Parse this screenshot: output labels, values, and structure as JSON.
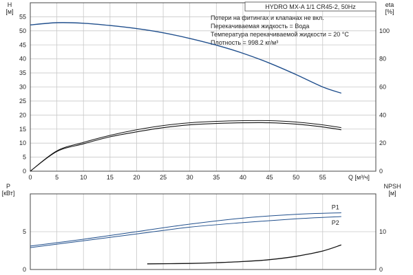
{
  "chart_data": [
    {
      "type": "line",
      "title": "HYDRO MX-A 1/1 CR45-2, 50Hz",
      "notes": [
        "Потери на фитингах и клапанах не вкл.",
        "Перекачиваемая жидкость = Вода",
        "Температура перекачиваемой жидкости = 20 °C",
        "Плотность = 998.2 кг/м³"
      ],
      "xlabel": "Q [м³/ч]",
      "xlim": [
        0,
        65
      ],
      "xticks": [
        "0",
        "5",
        "10",
        "15",
        "20",
        "25",
        "30",
        "35",
        "40",
        "45",
        "50",
        "55"
      ],
      "ylabel_left": "H\n[м]",
      "ylim_left": [
        0,
        60
      ],
      "yticks_left": [
        "0",
        "5",
        "10",
        "15",
        "20",
        "25",
        "30",
        "35",
        "40",
        "45",
        "50",
        "55"
      ],
      "ylabel_right": "eta\n[%]",
      "ylim_right": [
        0,
        120
      ],
      "yticks_right": [
        "0",
        "20",
        "40",
        "60",
        "80",
        "100"
      ],
      "grid": true,
      "colors": {
        "head": "#1f4e8c",
        "eta": "#111111"
      },
      "series": [
        {
          "axis": "left",
          "color_key": "head",
          "x": [
            0,
            5,
            10,
            15,
            20,
            25,
            30,
            35,
            40,
            45,
            50,
            55,
            58.5
          ],
          "values": [
            52.1,
            52.9,
            52.7,
            51.9,
            50.8,
            49.3,
            47.3,
            44.9,
            42.0,
            38.5,
            34.4,
            30.0,
            27.8
          ]
        },
        {
          "axis": "right",
          "color_key": "eta",
          "x": [
            0,
            5,
            10,
            15,
            20,
            25,
            30,
            35,
            40,
            45,
            50,
            55,
            58.5
          ],
          "values": [
            0,
            14.5,
            20.5,
            25.5,
            29.5,
            32.5,
            34.5,
            35.5,
            36.0,
            36.0,
            35.0,
            33.0,
            31.0
          ]
        },
        {
          "axis": "right",
          "color_key": "eta",
          "x": [
            0,
            5,
            10,
            15,
            20,
            25,
            30,
            35,
            40,
            45,
            50,
            55,
            58.5
          ],
          "values": [
            0,
            14.0,
            19.5,
            24.5,
            28.0,
            31.0,
            33.0,
            34.0,
            34.5,
            34.5,
            33.5,
            31.5,
            29.5
          ]
        }
      ]
    },
    {
      "type": "line",
      "ylabel_left": "P\n[кВт]",
      "ylim_left": [
        0,
        10
      ],
      "yticks_left": [
        "0",
        "5"
      ],
      "ylabel_right": "NPSH\n[м]",
      "ylim_right": [
        0,
        20
      ],
      "yticks_right": [
        "0",
        "10"
      ],
      "xlim": [
        0,
        65
      ],
      "grid": true,
      "colors": {
        "power": "#1f4e8c",
        "npsh": "#111111"
      },
      "series": [
        {
          "name": "P1",
          "axis": "left",
          "color_key": "power",
          "x": [
            0,
            10,
            20,
            30,
            40,
            50,
            58.5
          ],
          "values": [
            3.1,
            4.0,
            5.0,
            6.0,
            6.8,
            7.3,
            7.5
          ]
        },
        {
          "name": "P2",
          "axis": "left",
          "color_key": "power",
          "x": [
            0,
            10,
            20,
            30,
            40,
            50,
            58.5
          ],
          "values": [
            2.9,
            3.8,
            4.7,
            5.6,
            6.2,
            6.7,
            7.0
          ]
        },
        {
          "axis": "right",
          "color_key": "npsh",
          "x": [
            22,
            30,
            35,
            40,
            45,
            50,
            55,
            58.5
          ],
          "values": [
            1.5,
            1.6,
            1.8,
            2.1,
            2.6,
            3.5,
            4.9,
            6.5
          ]
        }
      ]
    }
  ]
}
